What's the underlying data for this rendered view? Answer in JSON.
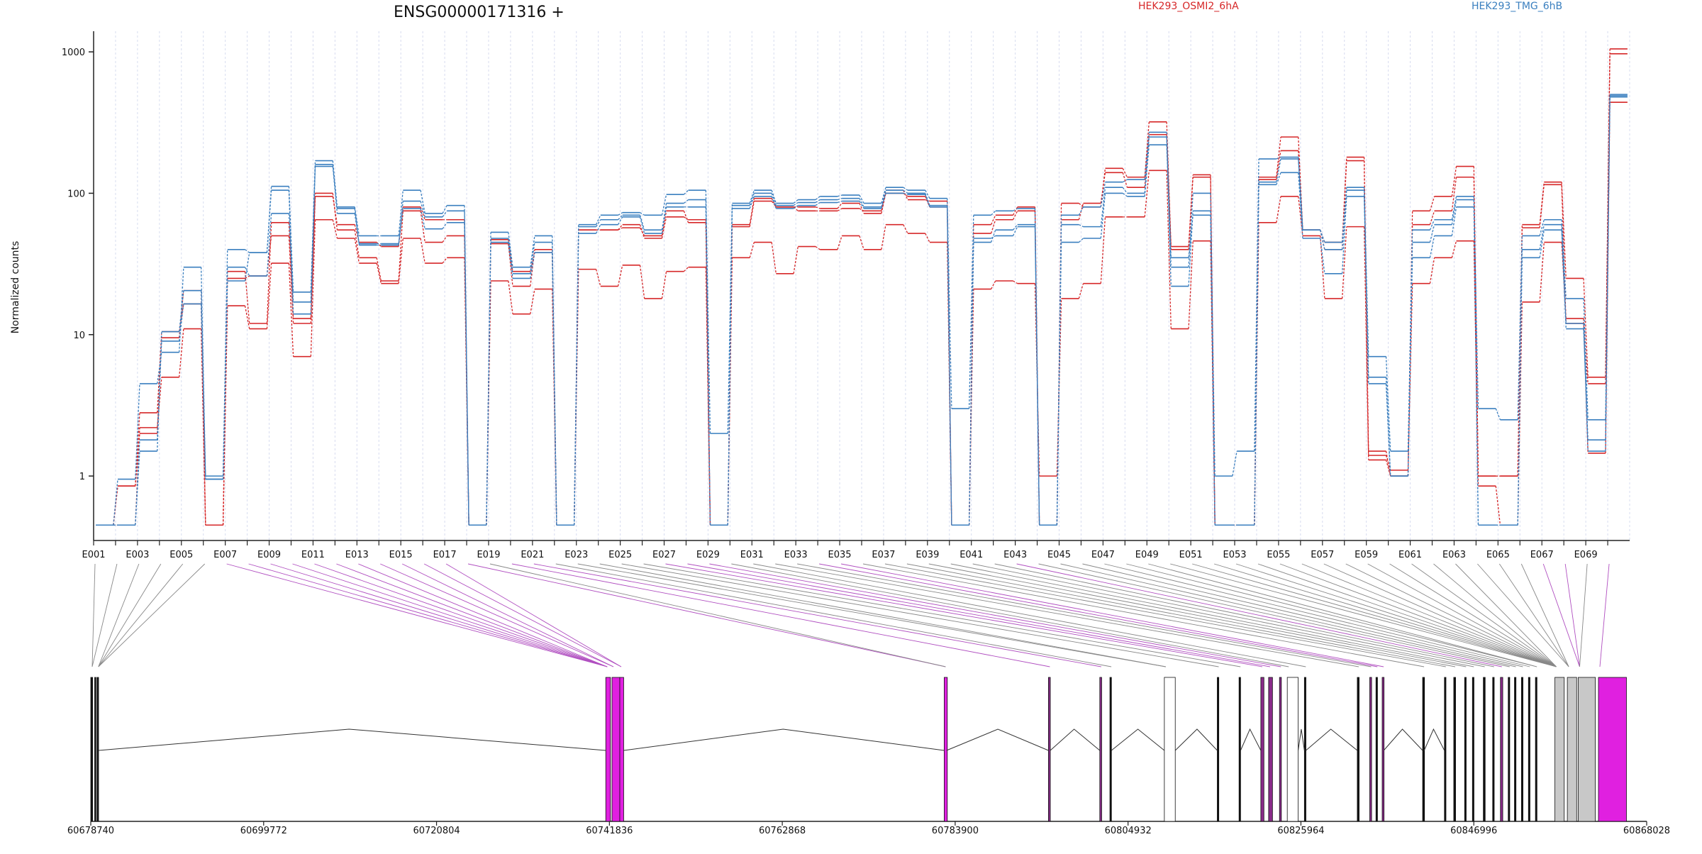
{
  "chart_data": {
    "type": "line",
    "title": "ENSG00000171316 +",
    "ylabel": "Normalized counts",
    "xlabel": "",
    "y_scale": "log",
    "ylim": [
      0.35,
      1400
    ],
    "y_ticks": [
      1,
      10,
      100,
      1000
    ],
    "y_tick_labels": [
      "1",
      "10",
      "100",
      "1000"
    ],
    "grid": "vertical dashed per exon bin",
    "legend": [
      {
        "label": "HEK293_OSMI2_6hA",
        "color": "#d62728"
      },
      {
        "label": "HEK293_TMG_6hB",
        "color": "#3a7fbf"
      }
    ],
    "exon_bins": [
      "E001",
      "E002",
      "E003",
      "E004",
      "E005",
      "E006",
      "E007",
      "E008",
      "E009",
      "E010",
      "E011",
      "E012",
      "E013",
      "E014",
      "E015",
      "E016",
      "E017",
      "E018",
      "E019",
      "E020",
      "E021",
      "E022",
      "E023",
      "E024",
      "E025",
      "E026",
      "E027",
      "E028",
      "E029",
      "E030",
      "E031",
      "E032",
      "E033",
      "E034",
      "E035",
      "E036",
      "E037",
      "E038",
      "E039",
      "E040",
      "E041",
      "E042",
      "E043",
      "E044",
      "E045",
      "E046",
      "E047",
      "E048",
      "E049",
      "E050",
      "E051",
      "E052",
      "E053",
      "E054",
      "E055",
      "E056",
      "E057",
      "E058",
      "E059",
      "E060",
      "E061",
      "E062",
      "E063",
      "E064",
      "E065",
      "E066",
      "E067",
      "E068",
      "E069",
      "E070"
    ],
    "bin_labels_shown": [
      "E001",
      "E003",
      "E005",
      "E007",
      "E009",
      "E011",
      "E013",
      "E015",
      "E017",
      "E019",
      "E021",
      "E023",
      "E025",
      "E027",
      "E029",
      "E031",
      "E033",
      "E035",
      "E037",
      "E039",
      "E041",
      "E043",
      "E045",
      "E047",
      "E049",
      "E051",
      "E053",
      "E055",
      "E057",
      "E059",
      "E061",
      "E063",
      "E065",
      "E067",
      "E069"
    ],
    "series": [
      {
        "name": "",
        "color": "#d62728",
        "values": [
          0.45,
          0.85,
          2.8,
          10.5,
          16.5,
          0.45,
          28,
          12,
          62,
          13,
          100,
          55,
          35,
          24,
          75,
          45,
          50,
          0.45,
          44,
          22,
          40,
          0.45,
          55,
          55,
          60,
          48,
          68,
          65,
          0.45,
          58,
          88,
          80,
          80,
          78,
          85,
          72,
          100,
          95,
          80,
          0.45,
          60,
          70,
          80,
          0.45,
          85,
          80,
          150,
          130,
          320,
          42,
          135,
          0.45,
          0.45,
          130,
          250,
          55,
          45,
          180,
          1.5,
          1.0,
          75,
          95,
          155,
          1.0,
          1.0,
          60,
          120,
          25,
          5.0,
          1050
        ]
      },
      {
        "name": "",
        "color": "#d62728",
        "values": [
          0.45,
          0.45,
          2.2,
          5.0,
          11.0,
          0.45,
          16,
          11,
          32,
          7.0,
          65,
          48,
          32,
          23,
          48,
          32,
          35,
          0.45,
          24,
          14,
          21,
          0.45,
          29,
          22,
          31,
          18,
          28,
          30,
          0.45,
          35,
          45,
          27,
          42,
          40,
          50,
          40,
          60,
          52,
          45,
          0.45,
          21,
          24,
          23,
          1.0,
          18,
          23,
          68,
          68,
          145,
          11,
          46,
          0.45,
          0.45,
          62,
          95,
          50,
          18,
          58,
          1.4,
          1.1,
          23,
          35,
          46,
          0.85,
          0.45,
          17,
          45,
          13,
          1.45,
          440
        ]
      },
      {
        "name": "",
        "color": "#d62728",
        "values": [
          0.45,
          0.85,
          2.0,
          9.5,
          20.5,
          0.45,
          25,
          26,
          50,
          12,
          95,
          60,
          45,
          42,
          80,
          65,
          65,
          0.45,
          47,
          28,
          38,
          0.45,
          55,
          55,
          57,
          50,
          75,
          62,
          0.45,
          60,
          92,
          80,
          75,
          75,
          78,
          75,
          105,
          90,
          88,
          0.45,
          52,
          65,
          75,
          0.45,
          65,
          85,
          140,
          110,
          260,
          40,
          130,
          0.45,
          0.45,
          125,
          200,
          55,
          40,
          170,
          1.3,
          1.0,
          60,
          75,
          130,
          1.0,
          1.0,
          57,
          115,
          12,
          4.5,
          970
        ]
      },
      {
        "name": "",
        "color": "#3a7fbf",
        "values": [
          0.45,
          0.95,
          4.5,
          7.5,
          30,
          1.0,
          40,
          38,
          112,
          20,
          170,
          80,
          50,
          50,
          105,
          72,
          82,
          0.45,
          53,
          30,
          50,
          0.45,
          60,
          70,
          73,
          70,
          98,
          105,
          2.0,
          85,
          105,
          85,
          90,
          95,
          97,
          85,
          110,
          105,
          92,
          3.0,
          70,
          75,
          78,
          0.45,
          70,
          80,
          120,
          125,
          270,
          30,
          100,
          1.0,
          1.5,
          175,
          180,
          55,
          45,
          110,
          7.0,
          1.5,
          55,
          65,
          95,
          3.0,
          2.5,
          50,
          65,
          18,
          2.5,
          500
        ]
      },
      {
        "name": "",
        "color": "#3a7fbf",
        "values": [
          0.45,
          0.45,
          1.5,
          10.5,
          20.5,
          0.95,
          30,
          26,
          72,
          17,
          160,
          78,
          43,
          43,
          88,
          68,
          75,
          0.45,
          48,
          27,
          45,
          0.45,
          58,
          65,
          70,
          55,
          85,
          90,
          0.45,
          82,
          100,
          82,
          86,
          90,
          92,
          80,
          105,
          100,
          82,
          0.45,
          45,
          55,
          60,
          0.45,
          60,
          58,
          110,
          100,
          250,
          22,
          75,
          0.45,
          0.45,
          120,
          175,
          55,
          40,
          105,
          5.0,
          1.0,
          45,
          60,
          90,
          0.45,
          0.45,
          40,
          60,
          12,
          1.5,
          480
        ]
      },
      {
        "name": "",
        "color": "#3a7fbf",
        "values": [
          0.45,
          0.45,
          1.8,
          9.0,
          16.5,
          0.95,
          24,
          38,
          105,
          14,
          155,
          72,
          44,
          44,
          78,
          56,
          62,
          0.45,
          45,
          25,
          38,
          0.45,
          52,
          60,
          68,
          52,
          80,
          80,
          0.45,
          78,
          95,
          78,
          82,
          86,
          88,
          78,
          100,
          98,
          80,
          0.45,
          48,
          50,
          58,
          0.45,
          45,
          48,
          100,
          95,
          220,
          35,
          70,
          0.45,
          0.45,
          115,
          140,
          48,
          27,
          95,
          4.5,
          1.0,
          35,
          50,
          80,
          0.45,
          0.45,
          35,
          55,
          11,
          1.8,
          490
        ]
      }
    ],
    "gene_model": {
      "coordinate_labels": [
        "60678740",
        "60699772",
        "60720804",
        "60741836",
        "60762868",
        "60783900",
        "60804932",
        "60825964",
        "60846996",
        "60868028"
      ],
      "range": [
        60678740,
        60868028
      ]
    }
  }
}
